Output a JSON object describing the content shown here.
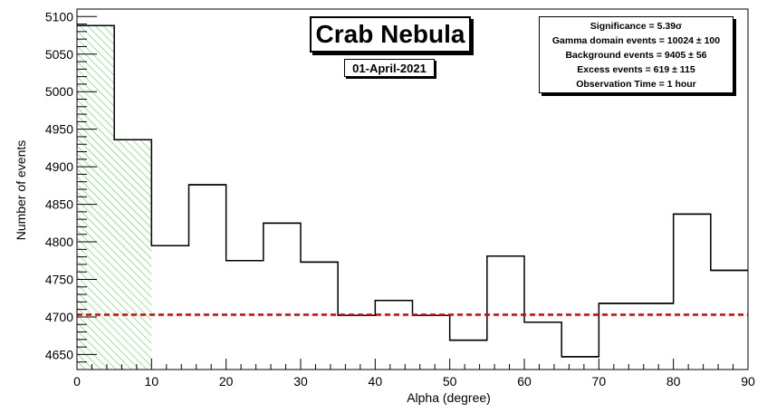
{
  "title": "Crab Nebula",
  "date_label": "01-April-2021",
  "stats": {
    "significance": "Significance = 5.39σ",
    "gamma_events": "Gamma domain events = 10024 ± 100",
    "background_events": "Background events = 9405 ± 56",
    "excess_events": "Excess events = 619 ± 115",
    "observation_time": "Observation Time = 1 hour"
  },
  "chart_data": {
    "type": "histogram",
    "xlabel": "Alpha (degree)",
    "ylabel": "Number of events",
    "xlim": [
      0,
      90
    ],
    "ylim": [
      4630,
      5110
    ],
    "x_ticks": [
      0,
      10,
      20,
      30,
      40,
      50,
      60,
      70,
      80,
      90
    ],
    "y_ticks": [
      4650,
      4700,
      4750,
      4800,
      4850,
      4900,
      4950,
      5000,
      5050,
      5100
    ],
    "bin_edges": [
      0,
      5,
      10,
      15,
      20,
      25,
      30,
      35,
      40,
      45,
      50,
      55,
      60,
      65,
      70,
      75,
      80,
      85,
      90
    ],
    "counts": [
      5088,
      4936,
      4795,
      4876,
      4775,
      4825,
      4773,
      4702,
      4722,
      4702,
      4669,
      4781,
      4693,
      4647,
      4718,
      4718,
      4837,
      4762
    ],
    "background_level": 4703,
    "background_line_color": "#e00000",
    "signal_region": [
      0,
      10
    ],
    "signal_hatch_color": "#33cc33",
    "line_color": "#000000"
  }
}
